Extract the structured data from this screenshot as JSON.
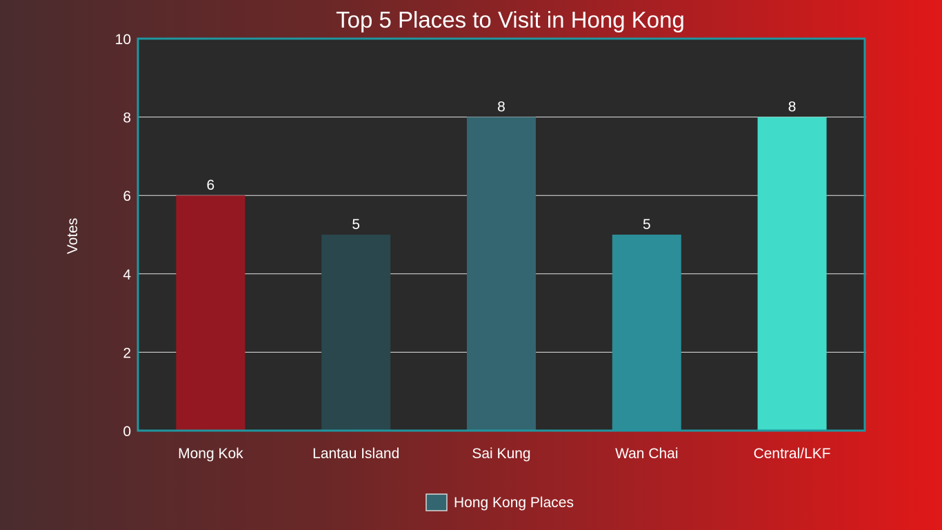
{
  "chart_data": {
    "type": "bar",
    "title": "Top 5 Places to Visit in Hong Kong",
    "xlabel": "",
    "ylabel": "Votes",
    "categories": [
      "Mong Kok",
      "Lantau Island",
      "Sai Kung",
      "Wan Chai",
      "Central/LKF"
    ],
    "series": [
      {
        "name": "Hong Kong Places",
        "values": [
          6,
          5,
          8,
          5,
          8
        ]
      }
    ],
    "bar_colors": [
      "#941822",
      "#29474d",
      "#336670",
      "#2b8e99",
      "#40dbc9"
    ],
    "legend_color": "#336670",
    "ylim": [
      0,
      10
    ],
    "yticks": [
      0,
      2,
      4,
      6,
      8,
      10
    ],
    "grid": true,
    "legend": "bottom-center",
    "data_labels": true
  },
  "colors": {
    "plot_background": "#2a2a2a",
    "plot_border": "#1f97a0",
    "gridline": "#e6e6e6"
  }
}
